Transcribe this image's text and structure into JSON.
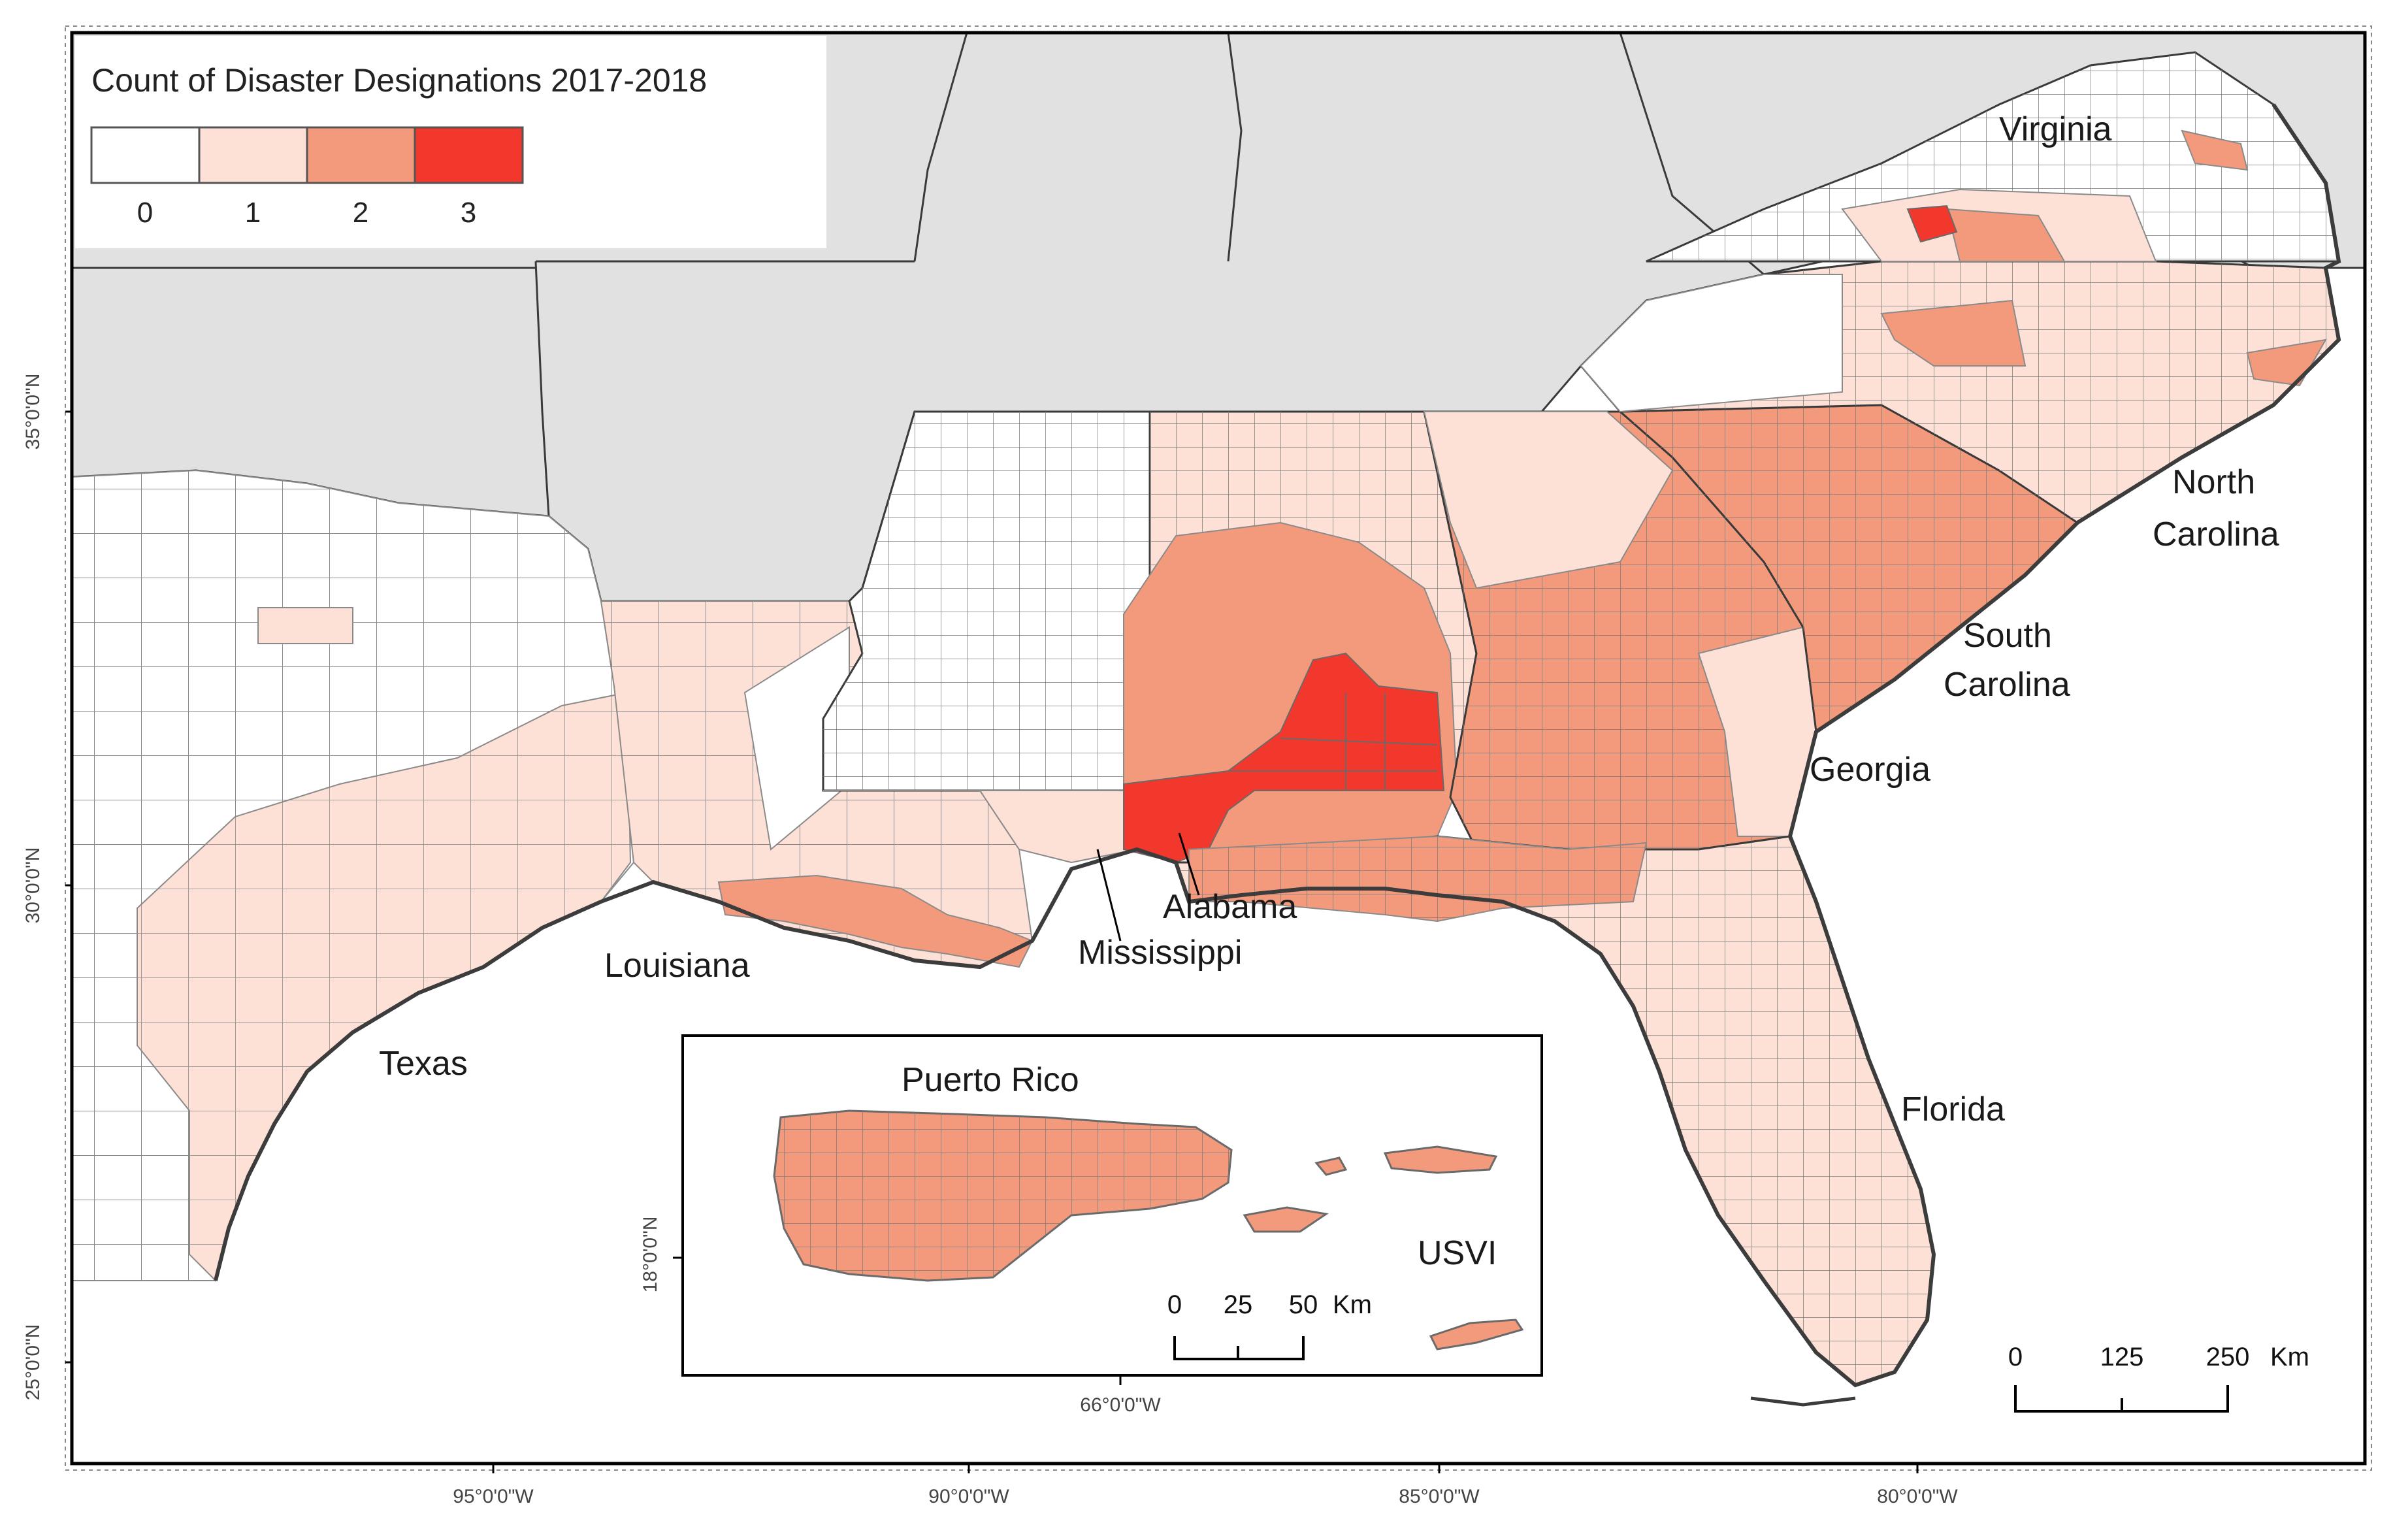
{
  "legend": {
    "title": "Count of Disaster Designations 2017-2018",
    "classes": [
      {
        "value": "0",
        "color": "#ffffff"
      },
      {
        "value": "1",
        "color": "#fde0d6"
      },
      {
        "value": "2",
        "color": "#f49a7c"
      },
      {
        "value": "3",
        "color": "#f2372c"
      }
    ]
  },
  "colors": {
    "non_study_states": "#e1e1e1",
    "county_border": "#8a8a8a",
    "state_border": "#3a3a3a",
    "coastline": "#3c3c3c",
    "background": "#ffffff"
  },
  "state_labels": {
    "virginia": "Virginia",
    "north_carolina_1": "North",
    "north_carolina_2": "Carolina",
    "south_carolina_1": "South",
    "south_carolina_2": "Carolina",
    "georgia": "Georgia",
    "alabama": "Alabama",
    "mississippi": "Mississippi",
    "louisiana": "Louisiana",
    "texas": "Texas",
    "florida": "Florida"
  },
  "latitude_labels": [
    "35°0'0\"N",
    "30°0'0\"N",
    "25°0'0\"N"
  ],
  "longitude_labels": [
    "95°0'0\"W",
    "90°0'0\"W",
    "85°0'0\"W",
    "80°0'0\"W"
  ],
  "scale_bar": {
    "ticks": [
      "0",
      "125",
      "250"
    ],
    "unit": "Km"
  },
  "inset": {
    "title": "Puerto Rico",
    "usvi_label": "USVI",
    "lat_label": "18°0'0\"N",
    "lon_label": "66°0'0\"W",
    "scale_ticks": [
      "0",
      "25",
      "50"
    ],
    "scale_unit": "Km"
  }
}
